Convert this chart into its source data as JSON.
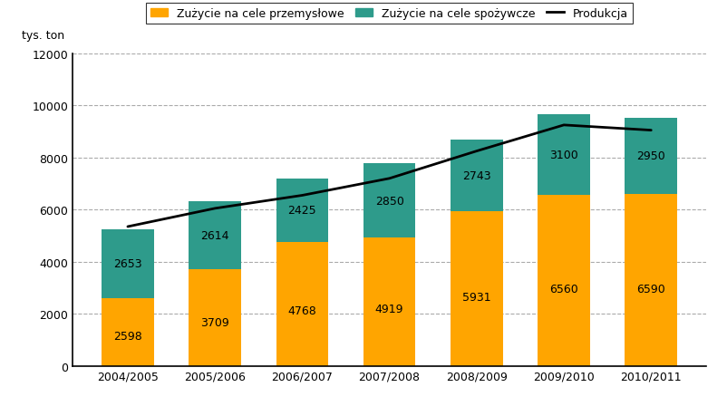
{
  "categories": [
    "2004/2005",
    "2005/2006",
    "2006/2007",
    "2007/2008",
    "2008/2009",
    "2009/2010",
    "2010/2011"
  ],
  "industrial": [
    2598,
    3709,
    4768,
    4919,
    5931,
    6560,
    6590
  ],
  "food": [
    2653,
    2614,
    2425,
    2850,
    2743,
    3100,
    2950
  ],
  "production_line": [
    5350,
    6050,
    6550,
    7200,
    8250,
    9250,
    9050
  ],
  "bar_color_industrial": "#FFA500",
  "bar_color_food": "#2E9B8B",
  "line_color": "#000000",
  "legend_labels": [
    "Zużycie na cele przemysłowe",
    "Zużycie na cele spożywcze",
    "Produkcja"
  ],
  "ylabel": "tys. ton",
  "ylim": [
    0,
    12000
  ],
  "yticks": [
    0,
    2000,
    4000,
    6000,
    8000,
    10000,
    12000
  ],
  "grid_color": "#aaaaaa",
  "background_color": "#ffffff",
  "bar_width": 0.6,
  "label_fontsize": 9,
  "tick_fontsize": 9
}
